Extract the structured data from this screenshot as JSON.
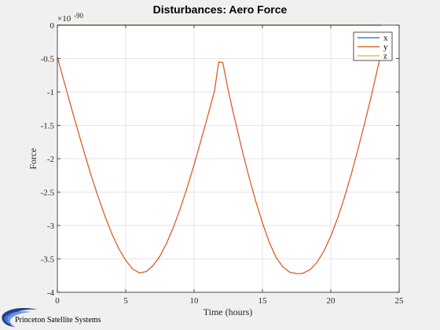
{
  "chart_data": {
    "type": "line",
    "title": "Disturbances: Aero Force",
    "xlabel": "Time (hours)",
    "ylabel": "Force",
    "y_exponent_label": "×10",
    "y_exponent_value": "-90",
    "xlim": [
      0,
      25
    ],
    "ylim": [
      -4,
      0
    ],
    "x_ticks": [
      0,
      5,
      10,
      15,
      20,
      25
    ],
    "y_ticks": [
      0,
      -0.5,
      -1,
      -1.5,
      -2,
      -2.5,
      -3,
      -3.5,
      -4
    ],
    "x_tick_labels": [
      "0",
      "5",
      "10",
      "15",
      "20",
      "25"
    ],
    "y_tick_labels": [
      "0",
      "-0.5",
      "-1",
      "-1.5",
      "-2",
      "-2.5",
      "-3",
      "-3.5",
      "-4"
    ],
    "grid": true,
    "legend_position": "top-right",
    "series": [
      {
        "name": "x",
        "color": "#0072BD",
        "x": [
          0,
          23.7
        ],
        "y": [
          0,
          0
        ]
      },
      {
        "name": "y",
        "color": "#D95319",
        "x": [
          0,
          0.5,
          1,
          1.5,
          2,
          2.5,
          3,
          3.5,
          4,
          4.5,
          5,
          5.5,
          6,
          6.5,
          7,
          7.5,
          8,
          8.5,
          9,
          9.5,
          10,
          10.5,
          11,
          11.5,
          11.8,
          12.1,
          12.5,
          13,
          13.5,
          14,
          14.5,
          15,
          15.5,
          16,
          16.5,
          17,
          17.5,
          17.9,
          18.5,
          19,
          19.5,
          20,
          20.5,
          21,
          21.5,
          22,
          22.5,
          23,
          23.7
        ],
        "y": [
          -0.48,
          -0.85,
          -1.22,
          -1.58,
          -1.93,
          -2.27,
          -2.58,
          -2.87,
          -3.13,
          -3.35,
          -3.52,
          -3.65,
          -3.71,
          -3.69,
          -3.6,
          -3.46,
          -3.26,
          -3.02,
          -2.74,
          -2.43,
          -2.09,
          -1.73,
          -1.36,
          -0.98,
          -0.55,
          -0.56,
          -0.98,
          -1.43,
          -1.86,
          -2.26,
          -2.63,
          -2.96,
          -3.25,
          -3.48,
          -3.62,
          -3.7,
          -3.72,
          -3.72,
          -3.66,
          -3.55,
          -3.38,
          -3.16,
          -2.89,
          -2.58,
          -2.23,
          -1.85,
          -1.45,
          -1.03,
          -0.4
        ]
      },
      {
        "name": "z",
        "color": "#EDB120",
        "x": [
          0,
          23.7
        ],
        "y": [
          0,
          0
        ]
      }
    ]
  },
  "footer": {
    "company": "Princeton Satellite Systems"
  }
}
